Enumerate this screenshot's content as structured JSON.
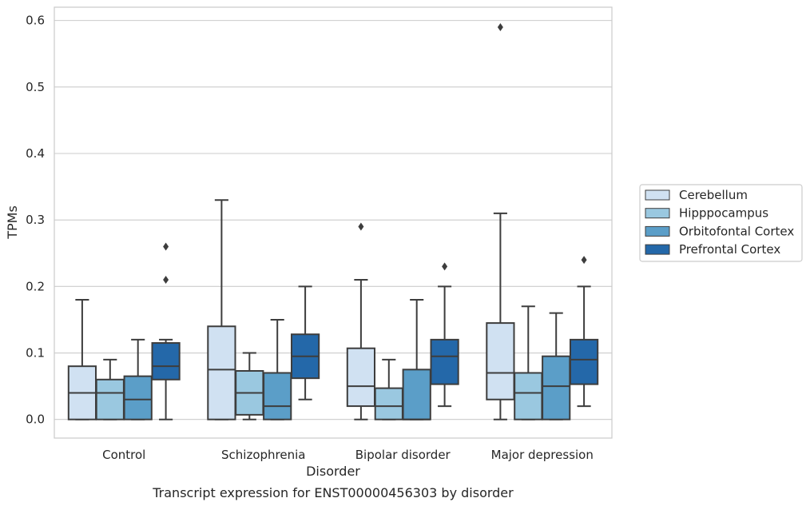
{
  "chart_data": {
    "type": "box",
    "caption": "Transcript expression for ENST00000456303 by disorder",
    "xlabel": "Disorder",
    "ylabel": "TPMs",
    "ylim": [
      -0.028,
      0.62
    ],
    "yticks": [
      "0.0",
      "0.1",
      "0.2",
      "0.3",
      "0.4",
      "0.5",
      "0.6"
    ],
    "grid": true,
    "legend_position": "right",
    "categories": [
      "Control",
      "Schizophrenia",
      "Bipolar disorder",
      "Major depression"
    ],
    "series": [
      {
        "name": "Cerebellum",
        "color": "#d0e1f2",
        "boxes": [
          {
            "whisker_low": 0.0,
            "q1": 0.0,
            "median": 0.04,
            "q3": 0.08,
            "whisker_high": 0.18,
            "outliers": []
          },
          {
            "whisker_low": 0.0,
            "q1": 0.0,
            "median": 0.075,
            "q3": 0.14,
            "whisker_high": 0.33,
            "outliers": []
          },
          {
            "whisker_low": 0.0,
            "q1": 0.02,
            "median": 0.05,
            "q3": 0.107,
            "whisker_high": 0.21,
            "outliers": [
              0.29
            ]
          },
          {
            "whisker_low": 0.0,
            "q1": 0.03,
            "median": 0.07,
            "q3": 0.145,
            "whisker_high": 0.31,
            "outliers": [
              0.59
            ]
          }
        ]
      },
      {
        "name": "Hipppocampus",
        "color": "#9ac8e0",
        "boxes": [
          {
            "whisker_low": 0.0,
            "q1": 0.0,
            "median": 0.04,
            "q3": 0.06,
            "whisker_high": 0.09,
            "outliers": []
          },
          {
            "whisker_low": 0.0,
            "q1": 0.007,
            "median": 0.04,
            "q3": 0.073,
            "whisker_high": 0.1,
            "outliers": []
          },
          {
            "whisker_low": 0.0,
            "q1": 0.0,
            "median": 0.02,
            "q3": 0.047,
            "whisker_high": 0.09,
            "outliers": []
          },
          {
            "whisker_low": 0.0,
            "q1": 0.0,
            "median": 0.04,
            "q3": 0.07,
            "whisker_high": 0.17,
            "outliers": []
          }
        ]
      },
      {
        "name": "Orbitofontal Cortex",
        "color": "#5b9ec8",
        "boxes": [
          {
            "whisker_low": 0.0,
            "q1": 0.0,
            "median": 0.03,
            "q3": 0.065,
            "whisker_high": 0.12,
            "outliers": []
          },
          {
            "whisker_low": 0.0,
            "q1": 0.0,
            "median": 0.02,
            "q3": 0.07,
            "whisker_high": 0.15,
            "outliers": []
          },
          {
            "whisker_low": 0.0,
            "q1": 0.0,
            "median": 0.0,
            "q3": 0.075,
            "whisker_high": 0.18,
            "outliers": []
          },
          {
            "whisker_low": 0.0,
            "q1": 0.0,
            "median": 0.05,
            "q3": 0.095,
            "whisker_high": 0.16,
            "outliers": []
          }
        ]
      },
      {
        "name": "Prefrontal Cortex",
        "color": "#2468a9",
        "boxes": [
          {
            "whisker_low": 0.0,
            "q1": 0.06,
            "median": 0.08,
            "q3": 0.115,
            "whisker_high": 0.12,
            "outliers": [
              0.21,
              0.26
            ]
          },
          {
            "whisker_low": 0.03,
            "q1": 0.062,
            "median": 0.095,
            "q3": 0.128,
            "whisker_high": 0.2,
            "outliers": []
          },
          {
            "whisker_low": 0.02,
            "q1": 0.053,
            "median": 0.095,
            "q3": 0.12,
            "whisker_high": 0.2,
            "outliers": [
              0.23
            ]
          },
          {
            "whisker_low": 0.02,
            "q1": 0.053,
            "median": 0.09,
            "q3": 0.12,
            "whisker_high": 0.2,
            "outliers": [
              0.24
            ]
          }
        ]
      }
    ]
  }
}
